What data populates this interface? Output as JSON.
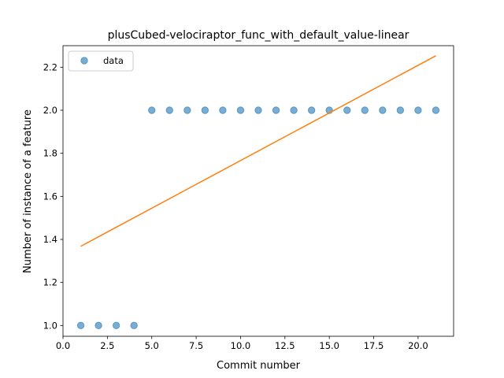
{
  "chart_data": {
    "type": "scatter",
    "title": "plusCubed-velociraptor_func_with_default_value-linear",
    "xlabel": "Commit number",
    "ylabel": "Number of instance of a feature",
    "xlim": [
      0.0,
      22.0
    ],
    "ylim": [
      0.95,
      2.3
    ],
    "x_ticks": [
      0.0,
      2.5,
      5.0,
      7.5,
      10.0,
      12.5,
      15.0,
      17.5,
      20.0
    ],
    "x_tick_labels": [
      "0.0",
      "2.5",
      "5.0",
      "7.5",
      "10.0",
      "12.5",
      "15.0",
      "17.5",
      "20.0"
    ],
    "y_ticks": [
      1.0,
      1.2,
      1.4,
      1.6,
      1.8,
      2.0,
      2.2
    ],
    "y_tick_labels": [
      "1.0",
      "1.2",
      "1.4",
      "1.6",
      "1.8",
      "2.0",
      "2.2"
    ],
    "grid": false,
    "legend_position": "top-left",
    "series": [
      {
        "name": "data",
        "kind": "scatter",
        "color": "#1f77b4",
        "x": [
          1,
          2,
          3,
          4,
          5,
          6,
          7,
          8,
          9,
          10,
          11,
          12,
          13,
          14,
          15,
          16,
          17,
          18,
          19,
          20,
          21
        ],
        "y": [
          1,
          1,
          1,
          1,
          2,
          2,
          2,
          2,
          2,
          2,
          2,
          2,
          2,
          2,
          2,
          2,
          2,
          2,
          2,
          2,
          2
        ]
      },
      {
        "kind": "line",
        "color": "#ff7f0e",
        "x": [
          1,
          21
        ],
        "y": [
          1.368,
          2.253
        ]
      }
    ]
  }
}
